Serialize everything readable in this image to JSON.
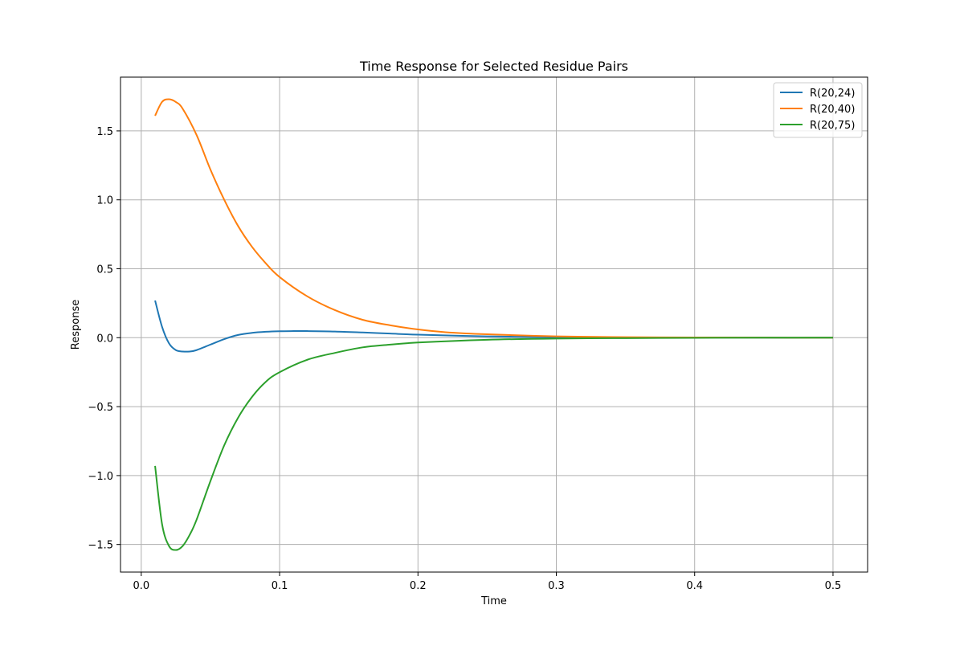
{
  "chart_data": {
    "type": "line",
    "title": "Time Response for Selected Residue Pairs",
    "xlabel": "Time",
    "ylabel": "Response",
    "xlim": [
      -0.015,
      0.525
    ],
    "ylim": [
      -1.7,
      1.89
    ],
    "xticks": [
      0.0,
      0.1,
      0.2,
      0.3,
      0.4,
      0.5
    ],
    "xtick_labels": [
      "0.0",
      "0.1",
      "0.2",
      "0.3",
      "0.4",
      "0.5"
    ],
    "yticks": [
      -1.5,
      -1.0,
      -0.5,
      0.0,
      0.5,
      1.0,
      1.5
    ],
    "ytick_labels": [
      "−1.5",
      "−1.0",
      "−0.5",
      "0.0",
      "0.5",
      "1.0",
      "1.5"
    ],
    "grid": true,
    "legend_position": "top-right",
    "series": [
      {
        "name": "R(20,24)",
        "color": "#1f77b4",
        "x": [
          0.01,
          0.015,
          0.02,
          0.025,
          0.03,
          0.035,
          0.04,
          0.05,
          0.06,
          0.07,
          0.08,
          0.09,
          0.1,
          0.11,
          0.12,
          0.14,
          0.16,
          0.18,
          0.2,
          0.25,
          0.3,
          0.35,
          0.4,
          0.45,
          0.5
        ],
        "y": [
          0.27,
          0.08,
          -0.04,
          -0.09,
          -0.1,
          -0.1,
          -0.09,
          -0.05,
          -0.01,
          0.02,
          0.035,
          0.043,
          0.047,
          0.048,
          0.048,
          0.045,
          0.038,
          0.03,
          0.022,
          0.01,
          0.004,
          0.002,
          0.001,
          0.0,
          0.0
        ]
      },
      {
        "name": "R(20,40)",
        "color": "#ff7f0e",
        "x": [
          0.01,
          0.015,
          0.02,
          0.025,
          0.03,
          0.04,
          0.05,
          0.06,
          0.07,
          0.08,
          0.09,
          0.1,
          0.12,
          0.14,
          0.16,
          0.18,
          0.2,
          0.22,
          0.25,
          0.3,
          0.35,
          0.4,
          0.45,
          0.5
        ],
        "y": [
          1.61,
          1.71,
          1.73,
          1.71,
          1.66,
          1.47,
          1.22,
          1.0,
          0.81,
          0.66,
          0.54,
          0.44,
          0.3,
          0.2,
          0.13,
          0.09,
          0.06,
          0.04,
          0.025,
          0.01,
          0.004,
          0.002,
          0.001,
          0.0
        ]
      },
      {
        "name": "R(20,75)",
        "color": "#2ca02c",
        "x": [
          0.01,
          0.015,
          0.02,
          0.025,
          0.03,
          0.035,
          0.04,
          0.05,
          0.06,
          0.07,
          0.08,
          0.09,
          0.1,
          0.12,
          0.14,
          0.16,
          0.18,
          0.2,
          0.25,
          0.3,
          0.35,
          0.4,
          0.45,
          0.5
        ],
        "y": [
          -0.93,
          -1.35,
          -1.51,
          -1.54,
          -1.51,
          -1.43,
          -1.32,
          -1.04,
          -0.78,
          -0.58,
          -0.43,
          -0.32,
          -0.25,
          -0.16,
          -0.11,
          -0.07,
          -0.05,
          -0.035,
          -0.015,
          -0.006,
          -0.003,
          -0.001,
          0.0,
          0.0
        ]
      }
    ]
  }
}
